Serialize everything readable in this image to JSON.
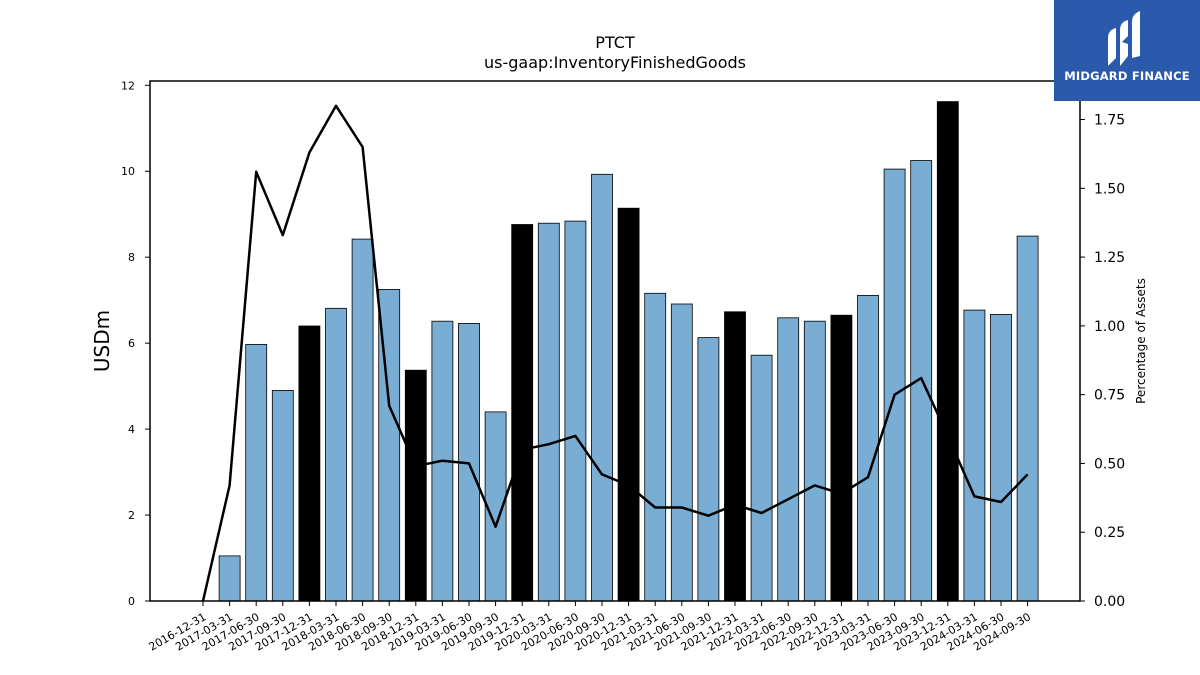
{
  "brand": {
    "name": "MIDGARD FINANCE",
    "bg_color": "#2b5aad"
  },
  "chart_data": {
    "type": "bar",
    "title": "PTCT",
    "subtitle": "us-gaap:InventoryFinishedGoods",
    "ylabel": "USDm",
    "y2label": "Percentage of Assets",
    "ylim": [
      0,
      12.1
    ],
    "y2lim": [
      0,
      1.89
    ],
    "yticks": [
      "0",
      "2",
      "4",
      "6",
      "8",
      "10",
      "12"
    ],
    "y2ticks": [
      "0.00",
      "0.25",
      "0.50",
      "0.75",
      "1.00",
      "1.25",
      "1.50",
      "1.75"
    ],
    "categories": [
      "2016-12-31",
      "2017-03-31",
      "2017-06-30",
      "2017-09-30",
      "2017-12-31",
      "2018-03-31",
      "2018-06-30",
      "2018-09-30",
      "2018-12-31",
      "2019-03-31",
      "2019-06-30",
      "2019-09-30",
      "2019-12-31",
      "2020-03-31",
      "2020-06-30",
      "2020-09-30",
      "2020-12-31",
      "2021-03-31",
      "2021-06-30",
      "2021-09-30",
      "2021-12-31",
      "2022-03-31",
      "2022-06-30",
      "2022-09-30",
      "2022-12-31",
      "2023-03-31",
      "2023-06-30",
      "2023-09-30",
      "2023-12-31",
      "2024-03-31",
      "2024-06-30",
      "2024-09-30"
    ],
    "series": [
      {
        "type": "bar",
        "axis": "left",
        "values": [
          0,
          1.05,
          5.97,
          4.9,
          6.4,
          6.81,
          8.42,
          7.25,
          5.37,
          6.51,
          6.46,
          4.4,
          8.76,
          8.79,
          8.84,
          9.93,
          9.14,
          7.16,
          6.91,
          6.13,
          6.73,
          5.72,
          6.59,
          6.51,
          6.65,
          7.11,
          10.05,
          10.25,
          11.62,
          6.77,
          6.67,
          8.49
        ],
        "colors": {
          "default": "#7aadd4",
          "year_end": "#000000"
        }
      },
      {
        "type": "line",
        "axis": "right",
        "color": "#000000",
        "values": [
          0,
          0.42,
          1.56,
          1.33,
          1.63,
          1.8,
          1.65,
          0.71,
          0.49,
          0.51,
          0.5,
          0.27,
          0.55,
          0.57,
          0.6,
          0.46,
          0.42,
          0.34,
          0.34,
          0.31,
          0.35,
          0.32,
          0.37,
          0.42,
          0.39,
          0.45,
          0.75,
          0.81,
          0.6,
          0.38,
          0.36,
          0.46
        ]
      }
    ],
    "grid": false
  }
}
